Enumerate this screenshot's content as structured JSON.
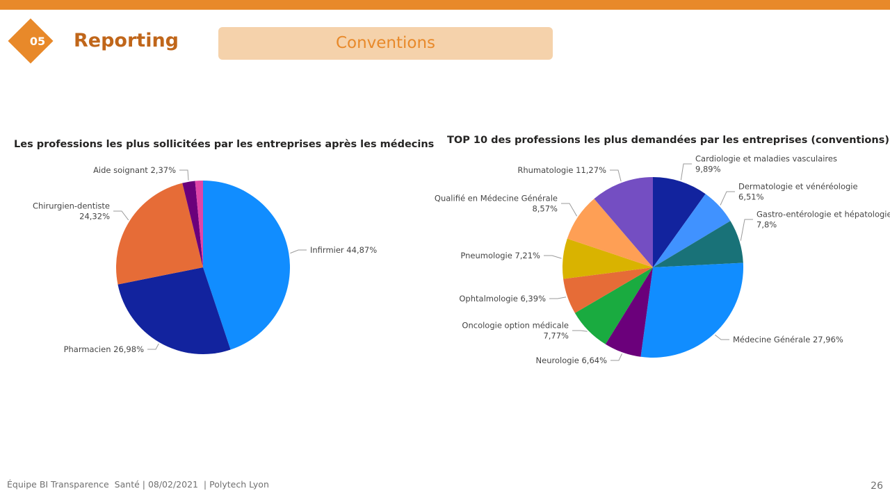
{
  "header": {
    "section_number": "05",
    "section_title": "Reporting",
    "tab_label": "Conventions",
    "accent_color": "#e8892a"
  },
  "footer": {
    "text": "Équipe BI Transparence  Santé | 08/02/2021  | Polytech Lyon",
    "page_number": "26"
  },
  "chart_data": [
    {
      "type": "pie",
      "title": "Les professions les plus sollicitées par les entreprises après les médecins",
      "slices": [
        {
          "label": [
            "Infirmier 44,87%"
          ],
          "value": 44.87,
          "color": "#118dff"
        },
        {
          "label": [
            "Pharmacien 26,98%"
          ],
          "value": 26.98,
          "color": "#12239e"
        },
        {
          "label": [
            "Chirurgien-dentiste",
            "24,32%"
          ],
          "value": 24.32,
          "color": "#e66c37"
        },
        {
          "label": [
            "Aide soignant 2,37%"
          ],
          "value": 2.37,
          "color": "#6b007b"
        },
        {
          "label": [],
          "value": 1.46,
          "color": "#e044a7"
        }
      ]
    },
    {
      "type": "pie",
      "title": "TOP 10 des professions les plus demandées par les entreprises (conventions)",
      "slices": [
        {
          "label": [
            "Cardiologie et maladies vasculaires",
            "9,89%"
          ],
          "value": 9.89,
          "color": "#12239e"
        },
        {
          "label": [
            "Dermatologie et vénéréologie",
            "6,51%"
          ],
          "value": 6.51,
          "color": "#4092ff"
        },
        {
          "label": [
            "Gastro-entérologie et hépatologie",
            "7,8%"
          ],
          "value": 7.8,
          "color": "#197278"
        },
        {
          "label": [
            "Médecine Générale 27,96%"
          ],
          "value": 27.96,
          "color": "#118dff"
        },
        {
          "label": [
            "Neurologie 6,64%"
          ],
          "value": 6.64,
          "color": "#6b007b"
        },
        {
          "label": [
            "Oncologie option médicale",
            "7,77%"
          ],
          "value": 7.77,
          "color": "#1aab40"
        },
        {
          "label": [
            "Ophtalmologie 6,39%"
          ],
          "value": 6.39,
          "color": "#e66c37"
        },
        {
          "label": [
            "Pneumologie 7,21%"
          ],
          "value": 7.21,
          "color": "#d9b300"
        },
        {
          "label": [
            "Qualifié en Médecine Générale",
            "8,57%"
          ],
          "value": 8.57,
          "color": "#fe9f55"
        },
        {
          "label": [
            "Rhumatologie 11,27%"
          ],
          "value": 11.27,
          "color": "#744ec2"
        }
      ]
    }
  ]
}
